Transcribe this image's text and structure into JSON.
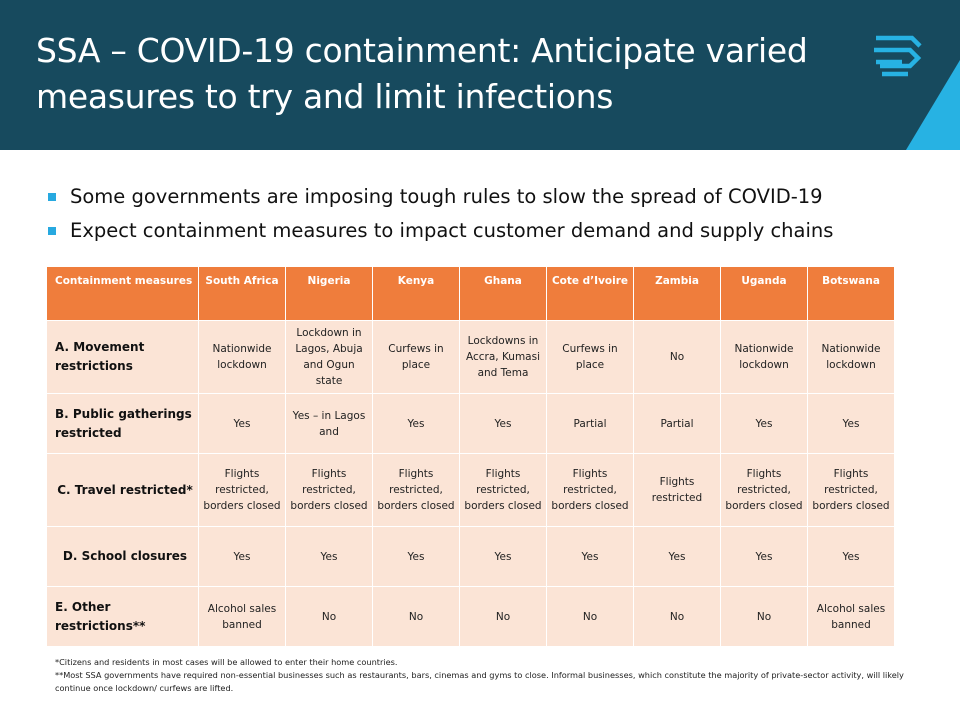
{
  "header": {
    "title_strong": "SSA – COVID-19 containment:",
    "title_rest": " Anticipate varied measures to try and limit infections",
    "background": "#174a5e",
    "accent": "#27b2e3"
  },
  "bullets": [
    "Some governments are imposing tough rules to slow the spread of COVID-19",
    "Expect containment measures to impact customer demand and supply chains"
  ],
  "table": {
    "columns": [
      "Containment measures",
      "South Africa",
      "Nigeria",
      "Kenya",
      "Ghana",
      "Cote d’Ivoire",
      "Zambia",
      "Uganda",
      "Botswana"
    ],
    "rows": [
      {
        "label": "A. Movement restrictions",
        "cells": [
          "Nationwide lockdown",
          "Lockdown in Lagos, Abuja and Ogun state",
          "Curfews in place",
          "Lockdowns in Accra, Kumasi and Tema",
          "Curfews in place",
          "No",
          "Nationwide lockdown",
          "Nationwide lockdown"
        ]
      },
      {
        "label": "B. Public gatherings restricted",
        "cells": [
          "Yes",
          "Yes – in Lagos and",
          "Yes",
          "Yes",
          "Partial",
          "Partial",
          "Yes",
          "Yes"
        ]
      },
      {
        "label": "C. Travel restricted*",
        "cells": [
          "Flights restricted, borders closed",
          "Flights restricted, borders closed",
          "Flights restricted, borders closed",
          "Flights restricted, borders closed",
          "Flights restricted, borders closed",
          "Flights restricted",
          "Flights restricted, borders closed",
          "Flights restricted, borders closed"
        ]
      },
      {
        "label": "D. School closures",
        "cells": [
          "Yes",
          "Yes",
          "Yes",
          "Yes",
          "Yes",
          "Yes",
          "Yes",
          "Yes"
        ]
      },
      {
        "label": "E. Other restrictions**",
        "cells": [
          "Alcohol sales banned",
          "No",
          "No",
          "No",
          "No",
          "No",
          "No",
          "Alcohol sales banned"
        ]
      }
    ],
    "header_color": "#ef7d3c",
    "cell_color": "#fbe4d6"
  },
  "footnotes": [
    "*Citizens and residents in most cases will be allowed to enter their home countries.",
    "**Most SSA governments have required non-essential businesses such as restaurants, bars, cinemas and gyms to close. Informal businesses, which constitute the majority of private-sector activity, will likely continue once lockdown/ curfews are lifted."
  ],
  "icons": {
    "logo": "stacked-chevrons-logo-icon"
  }
}
